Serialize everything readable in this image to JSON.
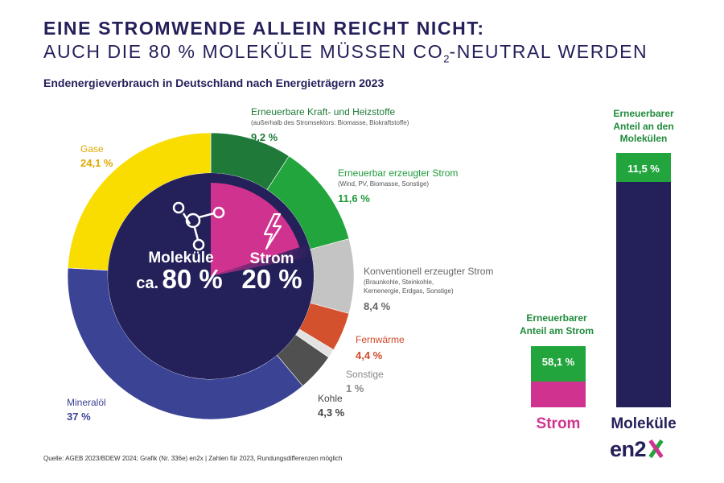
{
  "header": {
    "title_line1": "EINE STROMWENDE ALLEIN REICHT NICHT:",
    "title_line2_pre": "AUCH DIE 80 % MOLEKÜLE MÜSSEN CO",
    "title_line2_sub": "2",
    "title_line2_post": "-NEUTRAL WERDEN"
  },
  "chart_data": [
    {
      "type": "pie",
      "title": "Endenergieverbrauch in Deutschland nach Energieträgern 2023",
      "unit": "%",
      "slices": [
        {
          "name": "Erneuerbare Kraft- und Heizstoffe",
          "note": "(außerhalb des Stromsektors: Biomasse, Biokraftstoffe)",
          "value": 9.2,
          "label": "9,2 %",
          "color": "#1f7a3a"
        },
        {
          "name": "Erneuerbar erzeugter Strom",
          "note": "(Wind, PV, Biomasse, Sonstige)",
          "value": 11.6,
          "label": "11,6 %",
          "color": "#22a53c"
        },
        {
          "name": "Konventionell erzeugter Strom",
          "note": "(Braunkohle, Steinkohle, Kernenergie, Erdgas, Sonstige)",
          "value": 8.4,
          "label": "8,4 %",
          "color": "#c4c4c4"
        },
        {
          "name": "Fernwärme",
          "note": "",
          "value": 4.4,
          "label": "4,4 %",
          "color": "#d4512e"
        },
        {
          "name": "Sonstige",
          "note": "",
          "value": 1.0,
          "label": "1 %",
          "color": "#e2e2e2"
        },
        {
          "name": "Kohle",
          "note": "",
          "value": 4.3,
          "label": "4,3 %",
          "color": "#505050"
        },
        {
          "name": "Mineralöl",
          "note": "",
          "value": 37.0,
          "label": "37 %",
          "color": "#3b4395"
        },
        {
          "name": "Gase",
          "note": "",
          "value": 24.1,
          "label": "24,1 %",
          "color": "#f9dc00"
        }
      ],
      "inner": {
        "molecules_label": "Moleküle",
        "molecules_prefix": "ca.",
        "molecules_value": "80 %",
        "molecules_share": 80,
        "power_label": "Strom",
        "power_value": "20 %",
        "power_share": 20,
        "molecules_color": "#24205a",
        "power_color": "#d0338f"
      }
    },
    {
      "type": "bar",
      "categories": [
        "Strom",
        "Moleküle"
      ],
      "series": [
        {
          "values": [
            58.1,
            11.5
          ],
          "labels": [
            "58,1 %",
            "11,5 %"
          ],
          "color": "#22a53c"
        }
      ],
      "headings": [
        [
          "Erneuerbarer",
          "Anteil am Strom"
        ],
        [
          "Erneuerbarer",
          "Anteil an den",
          "Molekülen"
        ]
      ],
      "base_colors": [
        "#d0338f",
        "#24205a"
      ]
    }
  ],
  "footer": {
    "source": "Quelle: AGEB 2023/BDEW 2024; Grafik (Nr. 336e) en2x | Zahlen für 2023, Rundungsdifferenzen möglich",
    "logo_text": "en2"
  },
  "colors": {
    "navy": "#24205a",
    "magenta": "#d0338f",
    "green": "#22a53c"
  }
}
